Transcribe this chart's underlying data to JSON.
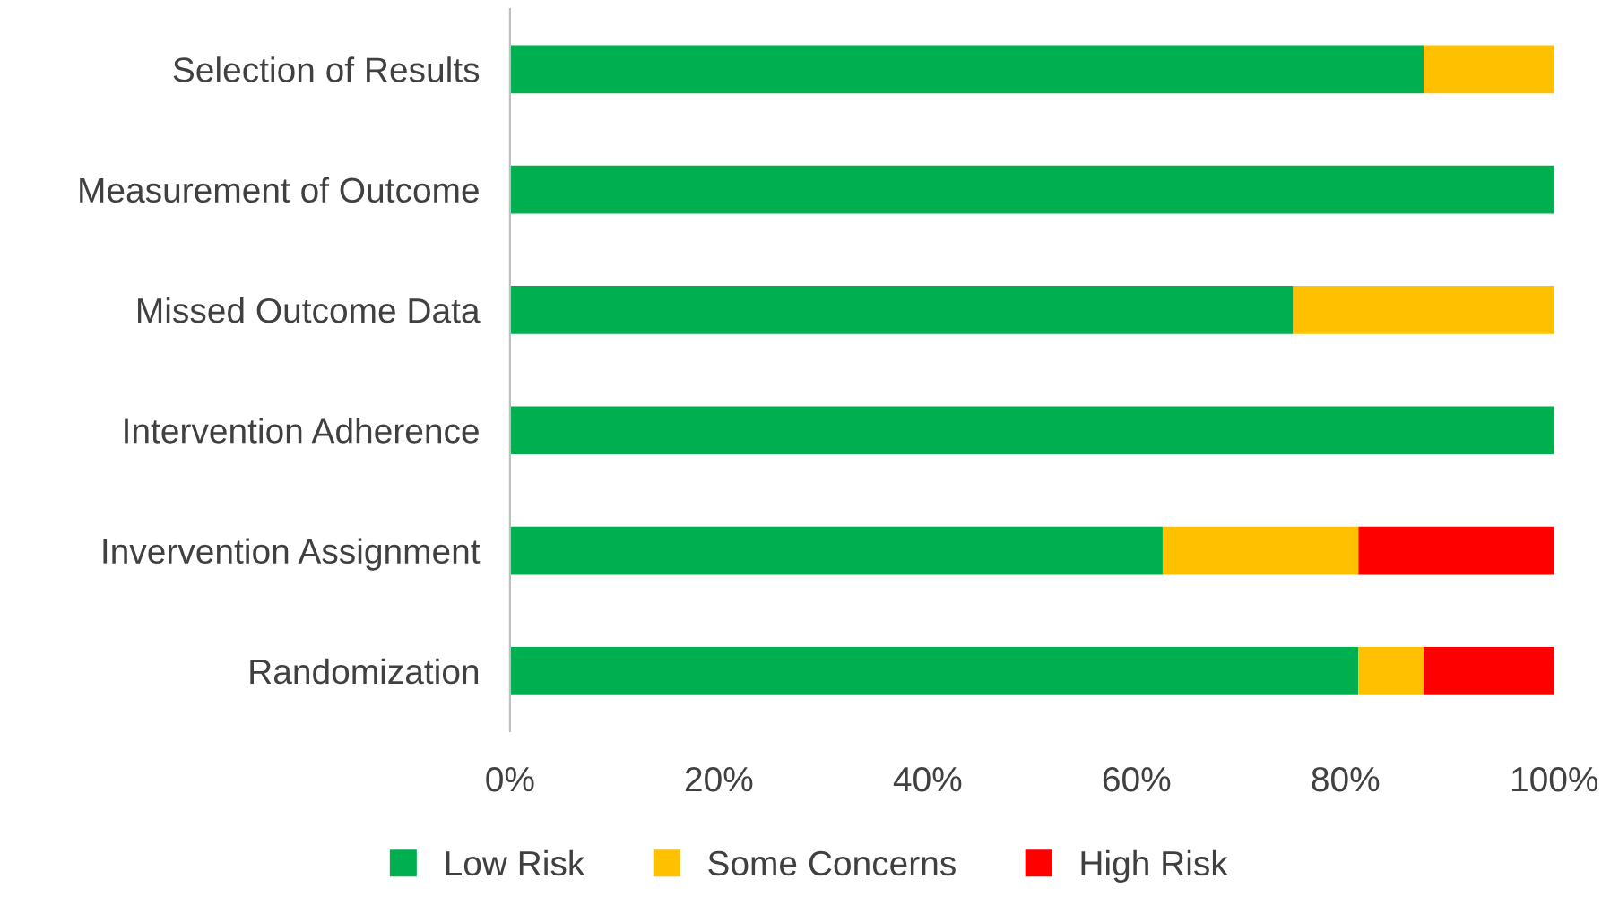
{
  "chart_data": {
    "type": "bar",
    "orientation": "horizontal",
    "stacked": true,
    "categories": [
      "Selection of Results",
      "Measurement of Outcome",
      "Missed Outcome Data",
      "Intervention Adherence",
      "Invervention Assignment",
      "Randomization"
    ],
    "series": [
      {
        "name": "Low Risk",
        "color": "#00b050",
        "values": [
          87.5,
          100,
          75,
          100,
          62.5,
          81.25
        ]
      },
      {
        "name": "Some Concerns",
        "color": "#ffc000",
        "values": [
          12.5,
          0,
          25,
          0,
          18.75,
          6.25
        ]
      },
      {
        "name": "High Risk",
        "color": "#ff0000",
        "values": [
          0,
          0,
          0,
          0,
          18.75,
          12.5
        ]
      }
    ],
    "xlim": [
      0,
      100
    ],
    "xticks": [
      {
        "value": 0,
        "label": "0%"
      },
      {
        "value": 20,
        "label": "20%"
      },
      {
        "value": 40,
        "label": "40%"
      },
      {
        "value": 60,
        "label": "60%"
      },
      {
        "value": 80,
        "label": "80%"
      },
      {
        "value": 100,
        "label": "100%"
      }
    ],
    "grid": false,
    "legend": "bottom"
  }
}
